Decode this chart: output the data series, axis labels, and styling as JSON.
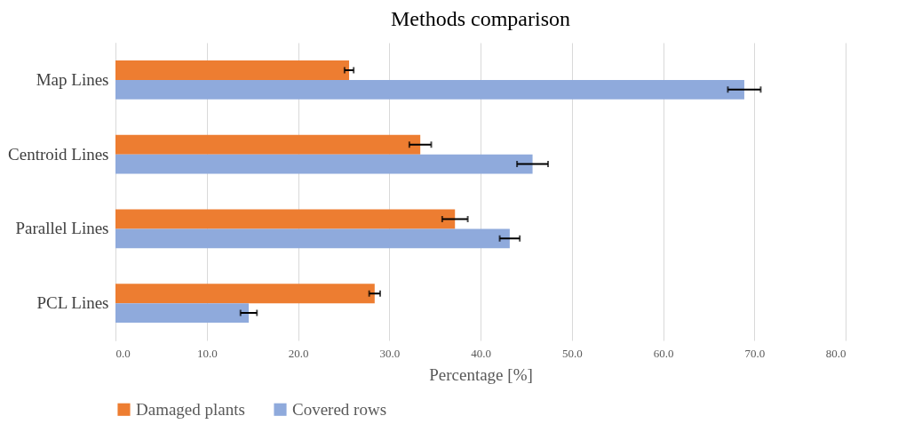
{
  "chart_data": {
    "type": "bar",
    "orientation": "horizontal",
    "title": "Methods comparison",
    "xlabel": "Percentage [%]",
    "categories": [
      "Map Lines",
      "Centroid Lines",
      "Parallel Lines",
      "PCL Lines"
    ],
    "series": [
      {
        "name": "Damaged plants",
        "color": "#ed7d31",
        "values": [
          25.6,
          33.4,
          37.2,
          28.4
        ],
        "errors": [
          0.5,
          1.2,
          1.4,
          0.6
        ]
      },
      {
        "name": "Covered rows",
        "color": "#8faadc",
        "values": [
          68.9,
          45.7,
          43.2,
          14.6
        ],
        "errors": [
          1.8,
          1.7,
          1.1,
          0.9
        ]
      }
    ],
    "xlim": [
      0,
      80
    ],
    "xticks": [
      {
        "value": 0,
        "label": "0.0"
      },
      {
        "value": 10,
        "label": "10.0"
      },
      {
        "value": 20,
        "label": "20.0"
      },
      {
        "value": 30,
        "label": "30.0"
      },
      {
        "value": 40,
        "label": "40.0"
      },
      {
        "value": 50,
        "label": "50.0"
      },
      {
        "value": 60,
        "label": "60.0"
      },
      {
        "value": 70,
        "label": "70.0"
      },
      {
        "value": 80,
        "label": "80.0"
      }
    ],
    "grid": "x",
    "legend": "bottom"
  }
}
